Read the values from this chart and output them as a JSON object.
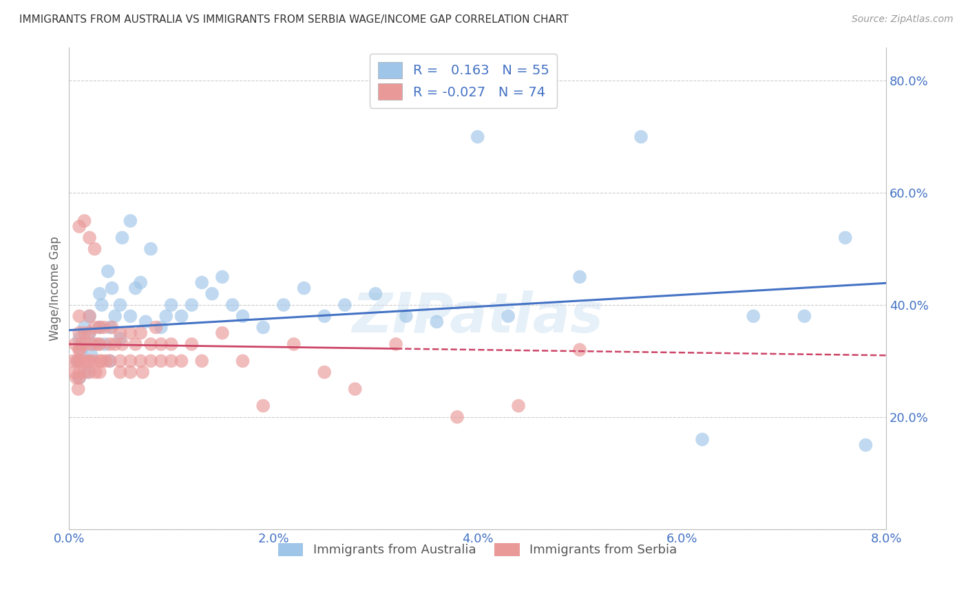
{
  "title": "IMMIGRANTS FROM AUSTRALIA VS IMMIGRANTS FROM SERBIA WAGE/INCOME GAP CORRELATION CHART",
  "source": "Source: ZipAtlas.com",
  "ylabel": "Wage/Income Gap",
  "xlim": [
    0.0,
    0.08
  ],
  "ylim": [
    0.0,
    0.86
  ],
  "xtick_labels": [
    "0.0%",
    "",
    "2.0%",
    "",
    "4.0%",
    "",
    "6.0%",
    "",
    "8.0%"
  ],
  "ytick_labels": [
    "",
    "20.0%",
    "40.0%",
    "60.0%",
    "80.0%"
  ],
  "legend_R_australia": "0.163",
  "legend_N_australia": "55",
  "legend_R_serbia": "-0.027",
  "legend_N_serbia": "74",
  "color_australia": "#9fc5e8",
  "color_serbia": "#ea9999",
  "trend_color_australia": "#4472c4",
  "trend_color_serbia": "#cc4466",
  "axis_label_color": "#4472c4",
  "ylabel_color": "#666666",
  "watermark": "ZIPatlas",
  "background_color": "#ffffff",
  "aus_x": [
    0.0008,
    0.001,
    0.001,
    0.0012,
    0.0015,
    0.0018,
    0.002,
    0.002,
    0.0022,
    0.0025,
    0.003,
    0.003,
    0.0032,
    0.0035,
    0.0038,
    0.004,
    0.004,
    0.0042,
    0.0045,
    0.005,
    0.005,
    0.0052,
    0.006,
    0.006,
    0.0065,
    0.007,
    0.0075,
    0.008,
    0.009,
    0.0095,
    0.01,
    0.011,
    0.012,
    0.013,
    0.014,
    0.015,
    0.016,
    0.017,
    0.019,
    0.021,
    0.023,
    0.025,
    0.027,
    0.03,
    0.033,
    0.036,
    0.04,
    0.043,
    0.05,
    0.056,
    0.062,
    0.067,
    0.072,
    0.076,
    0.078
  ],
  "aus_y": [
    0.3,
    0.34,
    0.27,
    0.32,
    0.36,
    0.28,
    0.35,
    0.38,
    0.31,
    0.33,
    0.42,
    0.36,
    0.4,
    0.33,
    0.46,
    0.36,
    0.3,
    0.43,
    0.38,
    0.4,
    0.34,
    0.52,
    0.38,
    0.55,
    0.43,
    0.44,
    0.37,
    0.5,
    0.36,
    0.38,
    0.4,
    0.38,
    0.4,
    0.44,
    0.42,
    0.45,
    0.4,
    0.38,
    0.36,
    0.4,
    0.43,
    0.38,
    0.4,
    0.42,
    0.38,
    0.37,
    0.7,
    0.38,
    0.45,
    0.7,
    0.16,
    0.38,
    0.38,
    0.52,
    0.15
  ],
  "ser_x": [
    0.0004,
    0.0005,
    0.0006,
    0.0007,
    0.0008,
    0.0009,
    0.001,
    0.001,
    0.001,
    0.001,
    0.001,
    0.001,
    0.001,
    0.0012,
    0.0013,
    0.0015,
    0.0015,
    0.0016,
    0.0018,
    0.002,
    0.002,
    0.002,
    0.002,
    0.0022,
    0.0024,
    0.0025,
    0.0026,
    0.0028,
    0.003,
    0.003,
    0.003,
    0.003,
    0.0032,
    0.0034,
    0.0036,
    0.004,
    0.004,
    0.0042,
    0.0045,
    0.005,
    0.005,
    0.005,
    0.0052,
    0.006,
    0.006,
    0.006,
    0.0065,
    0.007,
    0.007,
    0.0072,
    0.008,
    0.008,
    0.0085,
    0.009,
    0.009,
    0.01,
    0.01,
    0.011,
    0.012,
    0.013,
    0.015,
    0.017,
    0.019,
    0.022,
    0.025,
    0.028,
    0.032,
    0.038,
    0.044,
    0.05,
    0.001,
    0.002,
    0.0015,
    0.0025
  ],
  "ser_y": [
    0.3,
    0.28,
    0.33,
    0.27,
    0.3,
    0.25,
    0.32,
    0.28,
    0.35,
    0.3,
    0.27,
    0.32,
    0.38,
    0.33,
    0.3,
    0.35,
    0.28,
    0.33,
    0.3,
    0.35,
    0.3,
    0.28,
    0.38,
    0.33,
    0.3,
    0.36,
    0.28,
    0.33,
    0.36,
    0.3,
    0.28,
    0.33,
    0.3,
    0.36,
    0.3,
    0.33,
    0.3,
    0.36,
    0.33,
    0.3,
    0.35,
    0.28,
    0.33,
    0.35,
    0.3,
    0.28,
    0.33,
    0.3,
    0.35,
    0.28,
    0.33,
    0.3,
    0.36,
    0.3,
    0.33,
    0.3,
    0.33,
    0.3,
    0.33,
    0.3,
    0.35,
    0.3,
    0.22,
    0.33,
    0.28,
    0.25,
    0.33,
    0.2,
    0.22,
    0.32,
    0.54,
    0.52,
    0.55,
    0.5
  ]
}
